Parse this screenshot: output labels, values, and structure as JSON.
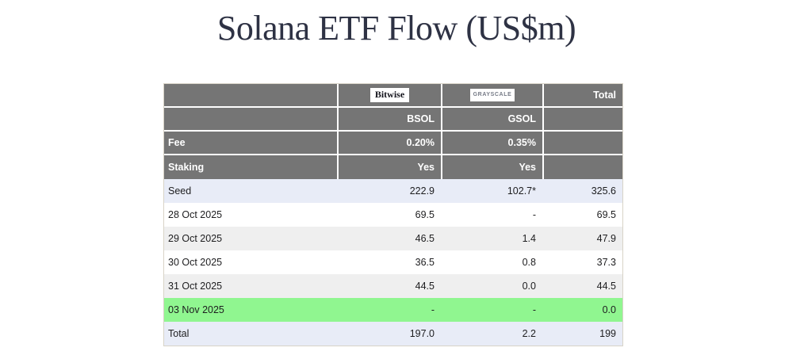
{
  "page": {
    "title": "Solana ETF Flow (US$m)"
  },
  "header": {
    "bitwise_logo": "Bitwise",
    "grayscale_logo": "GRAYSCALE",
    "total_label": "Total",
    "bsol_ticker": "BSOL",
    "gsol_ticker": "GSOL"
  },
  "fee_row": {
    "label": "Fee",
    "bsol": "0.20%",
    "gsol": "0.35%",
    "total": ""
  },
  "staking_row": {
    "label": "Staking",
    "bsol": "Yes",
    "gsol": "Yes",
    "total": ""
  },
  "rows": [
    {
      "label": "Seed",
      "bsol": "222.9",
      "gsol": "102.7*",
      "total": "325.6"
    },
    {
      "label": "28 Oct 2025",
      "bsol": "69.5",
      "gsol": "-",
      "total": "69.5"
    },
    {
      "label": "29 Oct 2025",
      "bsol": "46.5",
      "gsol": "1.4",
      "total": "47.9"
    },
    {
      "label": "30 Oct 2025",
      "bsol": "36.5",
      "gsol": "0.8",
      "total": "37.3"
    },
    {
      "label": "31 Oct 2025",
      "bsol": "44.5",
      "gsol": "0.0",
      "total": "44.5"
    },
    {
      "label": "03 Nov 2025",
      "bsol": "-",
      "gsol": "-",
      "total": "0.0"
    },
    {
      "label": "Total",
      "bsol": "197.0",
      "gsol": "2.2",
      "total": "199"
    }
  ],
  "colors": {
    "header_bg": "#757575",
    "blue_row_bg": "#e8ecf7",
    "gray_row_bg": "#efefef",
    "green_row_bg": "#90f690",
    "title_text": "#2e3244",
    "table_border": "#d8d3c7"
  },
  "chart_data": {
    "type": "table",
    "title": "Solana ETF Flow (US$m)",
    "columns": [
      "",
      "Bitwise BSOL",
      "Grayscale GSOL",
      "Total"
    ],
    "meta": {
      "fee": [
        "0.20%",
        "0.35%"
      ],
      "staking": [
        "Yes",
        "Yes"
      ]
    },
    "rows": [
      [
        "Seed",
        222.9,
        102.7,
        325.6
      ],
      [
        "28 Oct 2025",
        69.5,
        null,
        69.5
      ],
      [
        "29 Oct 2025",
        46.5,
        1.4,
        47.9
      ],
      [
        "30 Oct 2025",
        36.5,
        0.8,
        37.3
      ],
      [
        "31 Oct 2025",
        44.5,
        0.0,
        44.5
      ],
      [
        "03 Nov 2025",
        null,
        null,
        0.0
      ],
      [
        "Total",
        197.0,
        2.2,
        199
      ]
    ],
    "notes": "Seed GSOL value marked with asterisk; 03 Nov 2025 row highlighted green"
  }
}
